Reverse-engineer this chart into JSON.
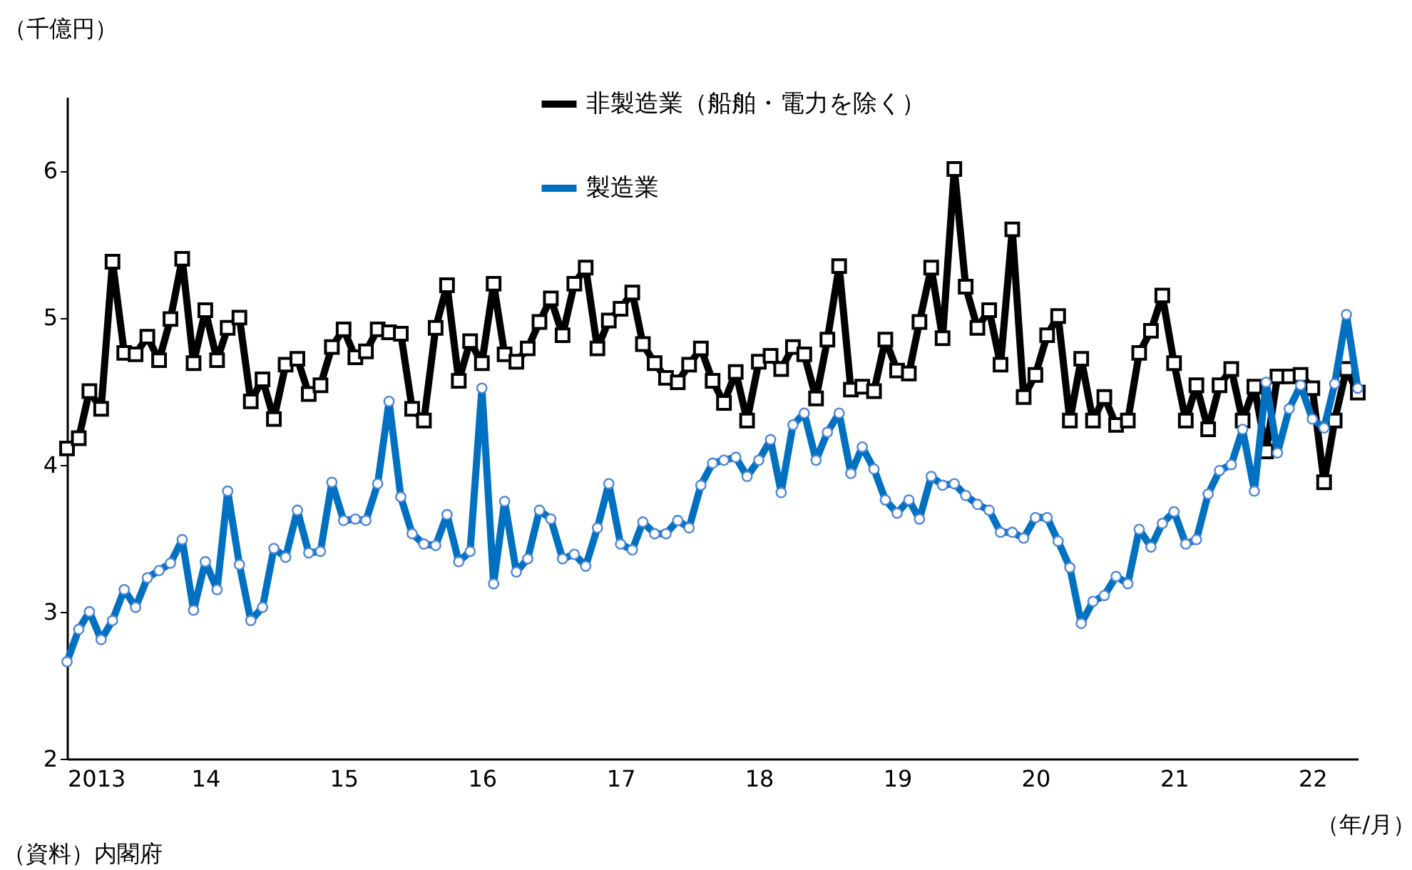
{
  "chart_data": {
    "type": "line",
    "ylabel": "（千億円）",
    "xlabel": "（年/月）",
    "annotations": [
      "（資料）内閣府"
    ],
    "x": [
      "2013-01",
      "2013-02",
      "2013-03",
      "2013-04",
      "2013-05",
      "2013-06",
      "2013-07",
      "2013-08",
      "2013-09",
      "2013-10",
      "2013-11",
      "2013-12",
      "2014-01",
      "2014-02",
      "2014-03",
      "2014-04",
      "2014-05",
      "2014-06",
      "2014-07",
      "2014-08",
      "2014-09",
      "2014-10",
      "2014-11",
      "2014-12",
      "2015-01",
      "2015-02",
      "2015-03",
      "2015-04",
      "2015-05",
      "2015-06",
      "2015-07",
      "2015-08",
      "2015-09",
      "2015-10",
      "2015-11",
      "2015-12",
      "2016-01",
      "2016-02",
      "2016-03",
      "2016-04",
      "2016-05",
      "2016-06",
      "2016-07",
      "2016-08",
      "2016-09",
      "2016-10",
      "2016-11",
      "2016-12",
      "2017-01",
      "2017-02",
      "2017-03",
      "2017-04",
      "2017-05",
      "2017-06",
      "2017-07",
      "2017-08",
      "2017-09",
      "2017-10",
      "2017-11",
      "2017-12",
      "2018-01",
      "2018-02",
      "2018-03",
      "2018-04",
      "2018-05",
      "2018-06",
      "2018-07",
      "2018-08",
      "2018-09",
      "2018-10",
      "2018-11",
      "2018-12",
      "2019-01",
      "2019-02",
      "2019-03",
      "2019-04",
      "2019-05",
      "2019-06",
      "2019-07",
      "2019-08",
      "2019-09",
      "2019-10",
      "2019-11",
      "2019-12",
      "2020-01",
      "2020-02",
      "2020-03",
      "2020-04",
      "2020-05",
      "2020-06",
      "2020-07",
      "2020-08",
      "2020-09",
      "2020-10",
      "2020-11",
      "2020-12",
      "2021-01",
      "2021-02",
      "2021-03",
      "2021-04",
      "2021-05",
      "2021-06",
      "2021-07",
      "2021-08",
      "2021-09",
      "2021-10",
      "2021-11",
      "2021-12",
      "2022-01",
      "2022-02",
      "2022-03",
      "2022-04",
      "2022-05"
    ],
    "series": [
      {
        "name": "非製造業（船舶・電力を除く）",
        "color": "#000000",
        "marker": "square",
        "values": [
          4.11,
          4.18,
          4.5,
          4.38,
          5.38,
          4.76,
          4.75,
          4.87,
          4.71,
          4.99,
          5.4,
          4.69,
          5.05,
          4.71,
          4.93,
          5.0,
          4.43,
          4.58,
          4.31,
          4.68,
          4.72,
          4.48,
          4.54,
          4.8,
          4.92,
          4.73,
          4.77,
          4.92,
          4.9,
          4.89,
          4.38,
          4.3,
          4.93,
          5.22,
          4.57,
          4.84,
          4.69,
          5.23,
          4.75,
          4.7,
          4.79,
          4.97,
          5.13,
          4.88,
          5.23,
          5.34,
          4.79,
          4.98,
          5.06,
          5.17,
          4.82,
          4.69,
          4.59,
          4.56,
          4.68,
          4.79,
          4.57,
          4.42,
          4.63,
          4.3,
          4.7,
          4.74,
          4.65,
          4.8,
          4.75,
          4.45,
          4.85,
          5.35,
          4.51,
          4.53,
          4.5,
          4.85,
          4.64,
          4.62,
          4.97,
          5.34,
          4.86,
          6.01,
          5.21,
          4.93,
          5.05,
          4.68,
          5.6,
          4.46,
          4.61,
          4.88,
          5.01,
          4.3,
          4.72,
          4.3,
          4.46,
          4.27,
          4.3,
          4.76,
          4.91,
          5.15,
          4.69,
          4.3,
          4.54,
          4.24,
          4.54,
          4.65,
          4.3,
          4.53,
          4.09,
          4.6,
          4.6,
          4.61,
          4.52,
          3.88,
          4.3,
          4.65,
          4.49
        ]
      },
      {
        "name": "製造業",
        "color": "#0070c0",
        "marker": "circle",
        "values": [
          2.66,
          2.88,
          3.0,
          2.81,
          2.94,
          3.15,
          3.03,
          3.23,
          3.28,
          3.33,
          3.49,
          3.01,
          3.34,
          3.15,
          3.82,
          3.32,
          2.94,
          3.03,
          3.43,
          3.37,
          3.69,
          3.4,
          3.41,
          3.88,
          3.62,
          3.63,
          3.62,
          3.87,
          4.43,
          3.78,
          3.53,
          3.46,
          3.45,
          3.66,
          3.34,
          3.41,
          4.52,
          3.19,
          3.75,
          3.27,
          3.36,
          3.69,
          3.63,
          3.36,
          3.39,
          3.31,
          3.57,
          3.87,
          3.46,
          3.42,
          3.61,
          3.53,
          3.53,
          3.62,
          3.57,
          3.86,
          4.01,
          4.03,
          4.05,
          3.92,
          4.03,
          4.17,
          3.81,
          4.27,
          4.35,
          4.03,
          4.22,
          4.35,
          3.94,
          4.12,
          3.97,
          3.76,
          3.67,
          3.76,
          3.63,
          3.92,
          3.86,
          3.87,
          3.79,
          3.73,
          3.69,
          3.54,
          3.54,
          3.5,
          3.64,
          3.64,
          3.48,
          3.3,
          2.92,
          3.07,
          3.11,
          3.24,
          3.19,
          3.56,
          3.44,
          3.6,
          3.68,
          3.46,
          3.49,
          3.8,
          3.96,
          4.0,
          4.24,
          3.82,
          4.56,
          4.08,
          4.38,
          4.54,
          4.31,
          4.25,
          4.55,
          5.02,
          4.52
        ]
      }
    ],
    "xlim": [
      "2013-01",
      "2022-05"
    ],
    "xticks": [
      {
        "value": "2013-01",
        "label": "2013"
      },
      {
        "value": "2014-01",
        "label": "14"
      },
      {
        "value": "2015-01",
        "label": "15"
      },
      {
        "value": "2016-01",
        "label": "16"
      },
      {
        "value": "2017-01",
        "label": "17"
      },
      {
        "value": "2018-01",
        "label": "18"
      },
      {
        "value": "2019-01",
        "label": "19"
      },
      {
        "value": "2020-01",
        "label": "20"
      },
      {
        "value": "2021-01",
        "label": "21"
      },
      {
        "value": "2022-01",
        "label": "22"
      }
    ],
    "ylim": [
      2,
      6.5
    ],
    "yticks": [
      2,
      3,
      4,
      5,
      6
    ],
    "grid": false,
    "legend": "top",
    "line_style": "solid"
  }
}
